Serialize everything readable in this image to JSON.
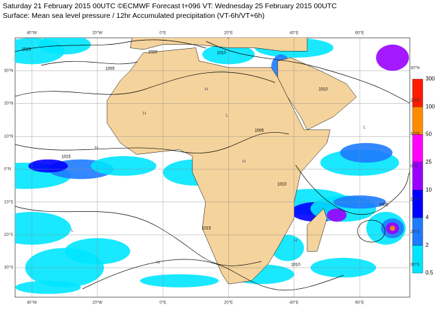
{
  "header": {
    "title": "Saturday 21 February 2015 00UTC ©ECMWF Forecast t+096 VT: Wednesday 25 February 2015 00UTC",
    "subtitle": "Surface: Mean sea level pressure / 12hr Accumulated precipitation (VT-6h/VT+6h)"
  },
  "longitudes": [
    "40°W",
    "20°W",
    "0°E",
    "20°E",
    "40°E",
    "60°E"
  ],
  "latitudes": [
    "30°N",
    "20°N",
    "10°N",
    "0°N",
    "10°S",
    "20°S",
    "30°S"
  ],
  "colorbar": {
    "labels": [
      300,
      100,
      50,
      25,
      10,
      4,
      2,
      0.5
    ],
    "colors": [
      "#ff1a00",
      "#ff8c00",
      "#ff00ff",
      "#9a00ff",
      "#0000ff",
      "#1e7bff",
      "#00e5ff"
    ]
  },
  "isobar_labels": [
    "1015",
    "1020",
    "1010",
    "1015",
    "1005",
    "1015",
    "1010",
    "1005",
    "1010",
    "1005",
    "1010"
  ],
  "pressure_centers": [
    "H",
    "H",
    "H",
    "L",
    "H",
    "L",
    "H",
    "L",
    "H",
    "L"
  ]
}
